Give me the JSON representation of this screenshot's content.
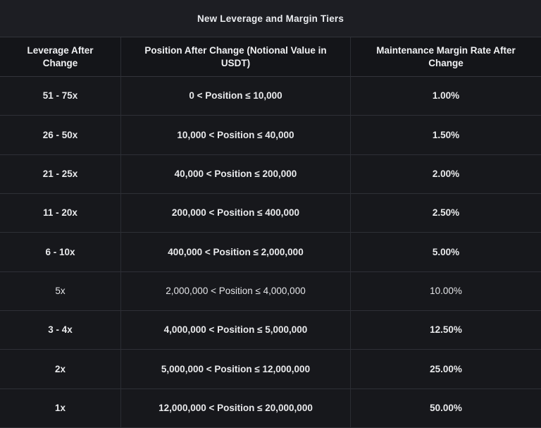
{
  "title": "New Leverage and Margin Tiers",
  "table": {
    "columns": [
      "Leverage After Change",
      "Position After Change (Notional Value in USDT)",
      "Maintenance Margin Rate After Change"
    ],
    "rows": [
      {
        "leverage": "51 - 75x",
        "position": "0 < Position ≤ 10,000",
        "margin_rate": "1.00%",
        "bold": true
      },
      {
        "leverage": "26 - 50x",
        "position": "10,000 < Position ≤ 40,000",
        "margin_rate": "1.50%",
        "bold": true
      },
      {
        "leverage": "21 - 25x",
        "position": "40,000 < Position ≤ 200,000",
        "margin_rate": "2.00%",
        "bold": true
      },
      {
        "leverage": "11 - 20x",
        "position": "200,000 < Position ≤ 400,000",
        "margin_rate": "2.50%",
        "bold": true
      },
      {
        "leverage": "6 - 10x",
        "position": "400,000 < Position ≤ 2,000,000",
        "margin_rate": "5.00%",
        "bold": true
      },
      {
        "leverage": "5x",
        "position": "2,000,000 < Position ≤ 4,000,000",
        "margin_rate": "10.00%",
        "bold": false
      },
      {
        "leverage": "3 - 4x",
        "position": "4,000,000 < Position ≤ 5,000,000",
        "margin_rate": "12.50%",
        "bold": true
      },
      {
        "leverage": "2x",
        "position": "5,000,000 < Position ≤ 12,000,000",
        "margin_rate": "25.00%",
        "bold": true
      },
      {
        "leverage": "1x",
        "position": "12,000,000 < Position ≤ 20,000,000",
        "margin_rate": "50.00%",
        "bold": true
      }
    ]
  },
  "colors": {
    "title_band_bg": "#1d1e23",
    "header_row_bg": "#141519",
    "data_row_bg": "#17181c",
    "border": "#2e3036",
    "text": "#e9eaec"
  },
  "chart_data": {
    "type": "table",
    "title": "New Leverage and Margin Tiers",
    "columns": [
      "Leverage After Change",
      "Position After Change (Notional Value in USDT)",
      "Maintenance Margin Rate After Change"
    ],
    "rows": [
      [
        "51 - 75x",
        "0 < Position ≤ 10,000",
        "1.00%"
      ],
      [
        "26 - 50x",
        "10,000 < Position ≤ 40,000",
        "1.50%"
      ],
      [
        "21 - 25x",
        "40,000 < Position ≤ 200,000",
        "2.00%"
      ],
      [
        "11 - 20x",
        "200,000 < Position ≤ 400,000",
        "2.50%"
      ],
      [
        "6 - 10x",
        "400,000 < Position ≤ 2,000,000",
        "5.00%"
      ],
      [
        "5x",
        "2,000,000 < Position ≤ 4,000,000",
        "10.00%"
      ],
      [
        "3 - 4x",
        "4,000,000 < Position ≤ 5,000,000",
        "12.50%"
      ],
      [
        "2x",
        "5,000,000 < Position ≤ 12,000,000",
        "25.00%"
      ],
      [
        "1x",
        "12,000,000 < Position ≤ 20,000,000",
        "50.00%"
      ]
    ]
  }
}
